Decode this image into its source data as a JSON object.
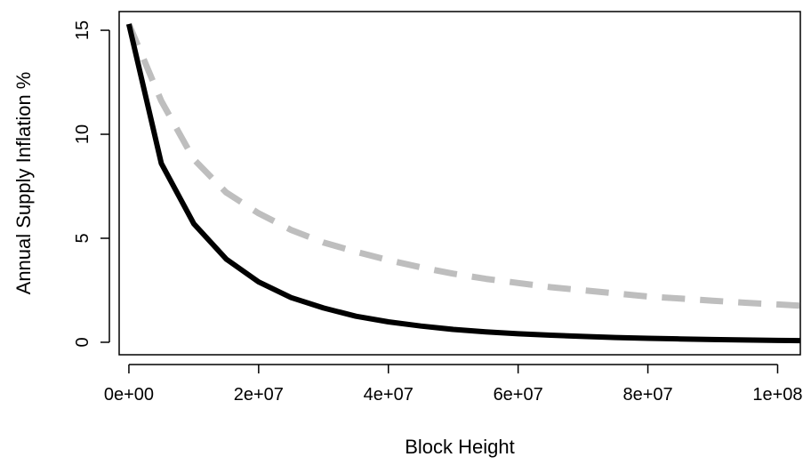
{
  "chart_data": {
    "type": "line",
    "title": "",
    "xlabel": "Block Height",
    "ylabel": "Annual Supply Inflation %",
    "xlim": [
      -1500000,
      103500000
    ],
    "ylim": [
      -0.6,
      15.9
    ],
    "grid": false,
    "legend": "none",
    "x_ticks": [
      {
        "value": 0,
        "label": "0e+00"
      },
      {
        "value": 20000000,
        "label": "2e+07"
      },
      {
        "value": 40000000,
        "label": "4e+07"
      },
      {
        "value": 60000000,
        "label": "6e+07"
      },
      {
        "value": 80000000,
        "label": "8e+07"
      },
      {
        "value": 100000000,
        "label": "1e+08"
      }
    ],
    "y_ticks": [
      {
        "value": 0,
        "label": "0"
      },
      {
        "value": 5,
        "label": "5"
      },
      {
        "value": 10,
        "label": "10"
      },
      {
        "value": 15,
        "label": "15"
      }
    ],
    "series": [
      {
        "style": "solid",
        "color": "#000000",
        "x": [
          0,
          5000000,
          10000000,
          15000000,
          20000000,
          25000000,
          30000000,
          35000000,
          40000000,
          45000000,
          50000000,
          55000000,
          60000000,
          65000000,
          70000000,
          75000000,
          80000000,
          85000000,
          90000000,
          95000000,
          100000000,
          103500000
        ],
        "y": [
          15.3,
          8.6,
          5.7,
          4.0,
          2.9,
          2.15,
          1.65,
          1.25,
          0.98,
          0.78,
          0.62,
          0.5,
          0.41,
          0.34,
          0.28,
          0.23,
          0.19,
          0.16,
          0.13,
          0.11,
          0.09,
          0.08
        ]
      },
      {
        "style": "dashed",
        "color": "#bebebe",
        "x": [
          0,
          5000000,
          10000000,
          15000000,
          20000000,
          25000000,
          30000000,
          35000000,
          40000000,
          45000000,
          50000000,
          55000000,
          60000000,
          65000000,
          70000000,
          75000000,
          80000000,
          85000000,
          90000000,
          95000000,
          100000000,
          103500000
        ],
        "y": [
          15.3,
          11.6,
          8.8,
          7.2,
          6.2,
          5.4,
          4.8,
          4.35,
          3.95,
          3.6,
          3.3,
          3.05,
          2.85,
          2.65,
          2.5,
          2.35,
          2.2,
          2.1,
          2.0,
          1.9,
          1.82,
          1.76
        ]
      }
    ]
  }
}
